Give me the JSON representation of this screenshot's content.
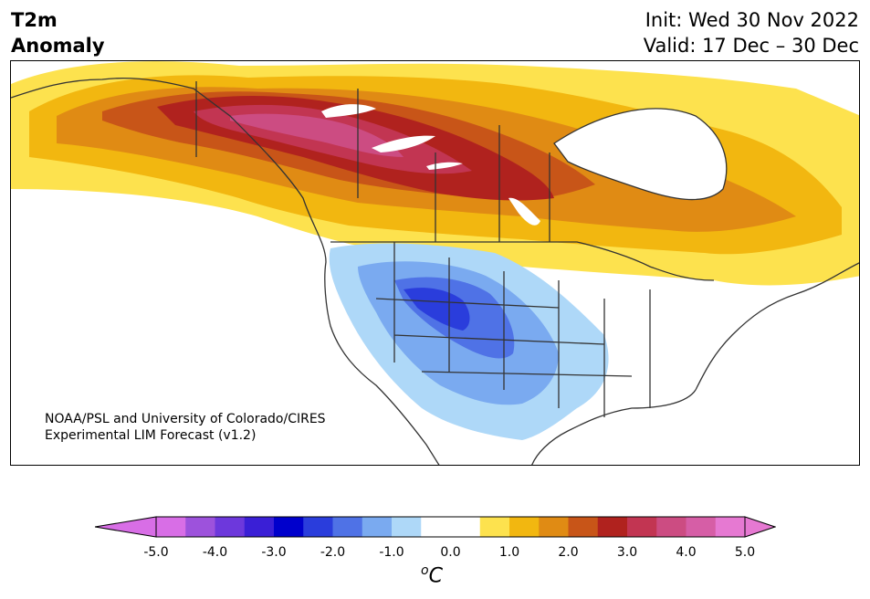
{
  "header": {
    "variable": "T2m",
    "field": "Anomaly",
    "init": "Init: Wed 30 Nov 2022",
    "valid": "Valid: 17 Dec – 30 Dec"
  },
  "credit": {
    "line1": "NOAA/PSL and University of Colorado/CIRES",
    "line2": "Experimental LIM Forecast (v1.2)"
  },
  "colorbar": {
    "ticks": [
      "-5.0",
      "-4.0",
      "-3.0",
      "-2.0",
      "-1.0",
      "0.0",
      "1.0",
      "2.0",
      "3.0",
      "4.0",
      "5.0"
    ],
    "unit_degree": "o",
    "unit_letter": "C",
    "colors": [
      "#d86ee6",
      "#9d52dc",
      "#6d38dc",
      "#3a1fd6",
      "#0000cc",
      "#2a3ddc",
      "#4f72e6",
      "#7aaaf0",
      "#aed8f8",
      "#ffffff",
      "#ffffff",
      "#fde24e",
      "#f2b710",
      "#e08b14",
      "#c85518",
      "#b0221e",
      "#c23552",
      "#cc4c82",
      "#d65ea6",
      "#e679d2"
    ]
  },
  "map": {
    "region": "North America",
    "anomaly_summary": {
      "max_warm": "3.5 to 4.0 over western/central Canada",
      "max_cold": "-2.5 to -3.0 over US Rockies / Colorado"
    }
  }
}
